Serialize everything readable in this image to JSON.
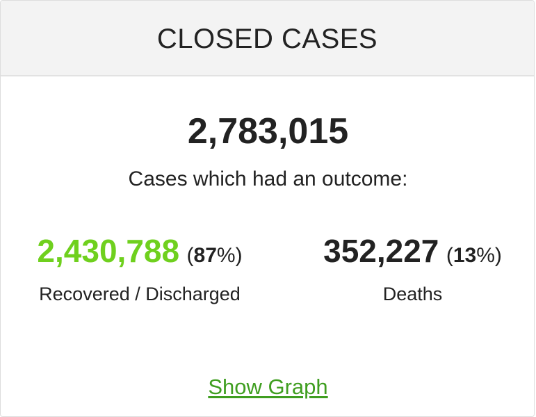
{
  "header": {
    "title": "CLOSED CASES"
  },
  "summary": {
    "total": "2,783,015",
    "subtitle": "Cases which had an outcome:"
  },
  "recovered": {
    "value": "2,430,788",
    "percent_open": "(",
    "percent_num": "87",
    "percent_close": "%)",
    "label": "Recovered / Discharged"
  },
  "deaths": {
    "value": "352,227",
    "percent_open": "(",
    "percent_num": "13",
    "percent_close": "%)",
    "label": "Deaths"
  },
  "link": {
    "label": "Show Graph"
  },
  "colors": {
    "recovered": "#6fd01e",
    "link": "#3f9e20",
    "header_bg": "#f3f3f3"
  }
}
